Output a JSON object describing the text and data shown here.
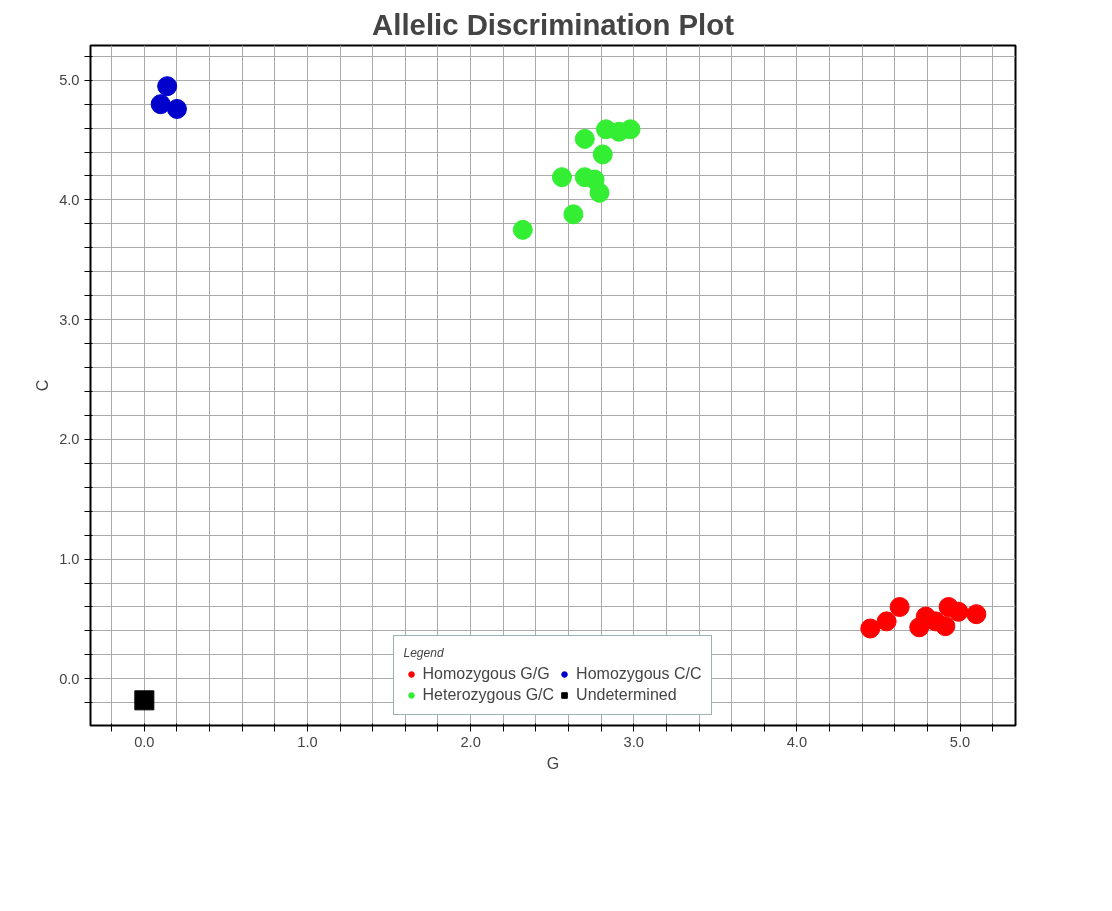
{
  "chart_data": {
    "type": "scatter",
    "title": "Allelic Discrimination Plot",
    "xlabel": "G",
    "ylabel": "C",
    "legend_title": "Legend",
    "series": [
      {
        "name": "Homozygous G/G",
        "color": "#ff0000",
        "marker": "circle",
        "x": [
          4.45,
          4.55,
          4.63,
          4.75,
          4.79,
          4.85,
          4.91,
          4.93,
          4.99,
          5.1
        ],
        "values": [
          0.42,
          0.48,
          0.6,
          0.43,
          0.52,
          0.48,
          0.44,
          0.6,
          0.56,
          0.54
        ]
      },
      {
        "name": "Heterozygous G/C",
        "color": "#33ee33",
        "marker": "circle",
        "x": [
          2.32,
          2.63,
          2.56,
          2.7,
          2.83,
          2.91,
          2.98,
          2.81,
          2.7,
          2.76,
          2.79
        ],
        "values": [
          3.75,
          3.88,
          4.19,
          4.51,
          4.59,
          4.57,
          4.59,
          4.38,
          4.19,
          4.17,
          4.06
        ]
      },
      {
        "name": "Homozygous C/C",
        "color": "#0000cc",
        "marker": "circle",
        "x": [
          0.14,
          0.1,
          0.2
        ],
        "values": [
          4.95,
          4.8,
          4.76
        ]
      },
      {
        "name": "Undetermined",
        "color": "#000000",
        "marker": "square",
        "x": [
          0.0
        ],
        "values": [
          -0.18
        ]
      }
    ],
    "xlim": [
      -0.33,
      5.34
    ],
    "ylim": [
      -0.39,
      5.29
    ],
    "xticks": [
      {
        "value": -0.2,
        "label": null
      },
      {
        "value": 0,
        "label": "0.0"
      },
      {
        "value": 0.2,
        "label": null
      },
      {
        "value": 0.4,
        "label": null
      },
      {
        "value": 0.6,
        "label": null
      },
      {
        "value": 0.8,
        "label": null
      },
      {
        "value": 1,
        "label": "1.0"
      },
      {
        "value": 1.2,
        "label": null
      },
      {
        "value": 1.4,
        "label": null
      },
      {
        "value": 1.6,
        "label": null
      },
      {
        "value": 1.8,
        "label": null
      },
      {
        "value": 2,
        "label": "2.0"
      },
      {
        "value": 2.2,
        "label": null
      },
      {
        "value": 2.4,
        "label": null
      },
      {
        "value": 2.6,
        "label": null
      },
      {
        "value": 2.8,
        "label": null
      },
      {
        "value": 3,
        "label": "3.0"
      },
      {
        "value": 3.2,
        "label": null
      },
      {
        "value": 3.4,
        "label": null
      },
      {
        "value": 3.6,
        "label": null
      },
      {
        "value": 3.8,
        "label": null
      },
      {
        "value": 4,
        "label": "4.0"
      },
      {
        "value": 4.2,
        "label": null
      },
      {
        "value": 4.4,
        "label": null
      },
      {
        "value": 4.6,
        "label": null
      },
      {
        "value": 4.8,
        "label": null
      },
      {
        "value": 5,
        "label": "5.0"
      },
      {
        "value": 5.2,
        "label": null
      }
    ],
    "yticks": [
      {
        "value": -0.2,
        "label": null
      },
      {
        "value": 0,
        "label": "0.0"
      },
      {
        "value": 0.2,
        "label": null
      },
      {
        "value": 0.4,
        "label": null
      },
      {
        "value": 0.6,
        "label": null
      },
      {
        "value": 0.8,
        "label": null
      },
      {
        "value": 1,
        "label": "1.0"
      },
      {
        "value": 1.2,
        "label": null
      },
      {
        "value": 1.4,
        "label": null
      },
      {
        "value": 1.6,
        "label": null
      },
      {
        "value": 1.8,
        "label": null
      },
      {
        "value": 2,
        "label": "2.0"
      },
      {
        "value": 2.2,
        "label": null
      },
      {
        "value": 2.4,
        "label": null
      },
      {
        "value": 2.6,
        "label": null
      },
      {
        "value": 2.8,
        "label": null
      },
      {
        "value": 3,
        "label": "3.0"
      },
      {
        "value": 3.2,
        "label": null
      },
      {
        "value": 3.4,
        "label": null
      },
      {
        "value": 3.6,
        "label": null
      },
      {
        "value": 3.8,
        "label": null
      },
      {
        "value": 4,
        "label": "4.0"
      },
      {
        "value": 4.2,
        "label": null
      },
      {
        "value": 4.4,
        "label": null
      },
      {
        "value": 4.6,
        "label": null
      },
      {
        "value": 4.8,
        "label": null
      },
      {
        "value": 5,
        "label": "5.0"
      },
      {
        "value": 5.2,
        "label": null
      }
    ],
    "grid": true,
    "legend": "bottom"
  }
}
